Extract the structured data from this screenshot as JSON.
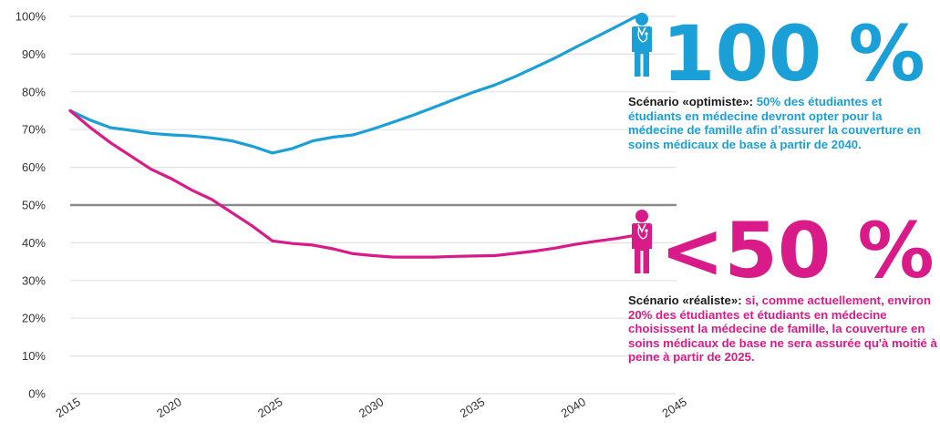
{
  "chart_data": {
    "type": "line",
    "x_ticks": [
      "2015",
      "2020",
      "2025",
      "2030",
      "2035",
      "2040",
      "2045"
    ],
    "y_ticks": [
      "0%",
      "10%",
      "20%",
      "30%",
      "40%",
      "50%",
      "60%",
      "70%",
      "80%",
      "90%",
      "100%"
    ],
    "xlim": [
      2015,
      2045
    ],
    "ylim": [
      0,
      100
    ],
    "grid": true,
    "reference_line": 50,
    "series": [
      {
        "color": "#1a9fd6",
        "x": [
          2015,
          2016,
          2017,
          2018,
          2019,
          2020,
          2021,
          2022,
          2023,
          2024,
          2025,
          2026,
          2027,
          2028,
          2029,
          2030,
          2031,
          2032,
          2033,
          2034,
          2035,
          2036,
          2037,
          2038,
          2039,
          2040,
          2041,
          2042,
          2043
        ],
        "y": [
          75,
          72.5,
          70.5,
          69.8,
          69,
          68.6,
          68.3,
          67.8,
          67,
          65.6,
          63.8,
          65,
          67,
          68,
          68.6,
          70.2,
          72,
          73.9,
          75.9,
          78,
          80,
          81.8,
          84,
          86.5,
          89,
          91.8,
          94.5,
          97.2,
          100
        ]
      },
      {
        "color": "#d81b88",
        "x": [
          2015,
          2016,
          2017,
          2018,
          2019,
          2020,
          2021,
          2022,
          2023,
          2024,
          2025,
          2026,
          2027,
          2028,
          2029,
          2030,
          2031,
          2032,
          2033,
          2034,
          2035,
          2036,
          2037,
          2038,
          2039,
          2040,
          2041,
          2042,
          2043
        ],
        "y": [
          75,
          70.5,
          66.5,
          63,
          59.5,
          57,
          54,
          51.5,
          48,
          44.5,
          40.5,
          39.8,
          39.4,
          38.4,
          37.1,
          36.6,
          36.2,
          36.2,
          36.2,
          36.4,
          36.5,
          36.6,
          37.2,
          37.8,
          38.6,
          39.6,
          40.4,
          41.1,
          42
        ]
      }
    ]
  },
  "callouts": {
    "optimistic": {
      "big_value": "100 %",
      "lead": "Scénario «optimiste»:",
      "text": " 50% des étudiantes et étudiants en médecine devront opter pour la médecine de famille afin d’assurer la couverture en soins médicaux de base à partir de 2040.",
      "color": "#1a9fd6",
      "icon": "doctor-icon"
    },
    "realistic": {
      "big_value": "<50 %",
      "lead": "Scénario «réaliste»:",
      "text": " si, comme actuellement, environ 20% des étudiantes et étudiants en médecine choisissent la médecine de famille, la couverture en soins médicaux de base ne sera assurée qu'à moitié à peine à partir de 2025.",
      "color": "#d81b88",
      "icon": "doctor-icon"
    }
  }
}
